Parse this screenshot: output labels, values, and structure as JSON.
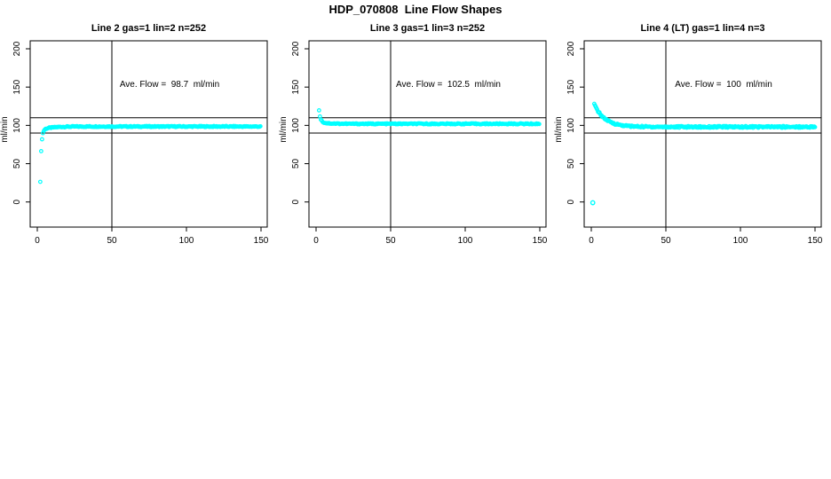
{
  "title": "HDP_070808  Line Flow Shapes",
  "colors": {
    "point": "#00ffff",
    "axis": "#000000",
    "text": "#000000",
    "background": "#ffffff"
  },
  "axes": {
    "x_ticks": [
      0,
      50,
      100,
      150
    ],
    "y_ticks": [
      0,
      50,
      100,
      150,
      200
    ],
    "y_label": "ml/min",
    "x_range": [
      -5,
      155
    ],
    "y_range": [
      -33,
      212
    ],
    "grid": false
  },
  "ref_lines": {
    "horizontal": [
      90,
      110
    ],
    "vertical": [
      50
    ]
  },
  "chart_data": [
    {
      "type": "scatter",
      "title": "Line 2 gas=1 lin=2 n=252",
      "annotation": "Ave. Flow =  98.7  ml/min",
      "ave_flow": 98.7,
      "n_points": 252,
      "band": {
        "x_start": 2,
        "x_end": 150,
        "step": 0.6,
        "level": 98.5,
        "decay": [
          {
            "amp": -66.5,
            "tau": 0.7
          },
          {
            "amp": -5.0,
            "tau": 6.0
          }
        ],
        "jitter": 0.7
      },
      "outliers": []
    },
    {
      "type": "scatter",
      "title": "Line 3 gas=1 lin=3 n=252",
      "annotation": "Ave. Flow =  102.5  ml/min",
      "ave_flow": 102.5,
      "n_points": 252,
      "band": {
        "x_start": 2,
        "x_end": 150,
        "step": 0.6,
        "level": 102.0,
        "decay": [
          {
            "amp": 15.0,
            "tau": 1.0
          },
          {
            "amp": 2.0,
            "tau": 6.0
          }
        ],
        "jitter": 0.7
      },
      "outliers": []
    },
    {
      "type": "scatter",
      "title": "Line 4 (LT) gas=1 lin=4 n=3",
      "annotation": "Ave. Flow =  100  ml/min",
      "ave_flow": 100,
      "n_points": 3,
      "band": {
        "x_start": 2,
        "x_end": 150,
        "step": 0.5,
        "level": 98.0,
        "decay": [
          {
            "amp": 29.5,
            "tau": 7.0
          }
        ],
        "jitter": 1.1
      },
      "outliers": [
        [
          1,
          -1
        ]
      ]
    }
  ]
}
